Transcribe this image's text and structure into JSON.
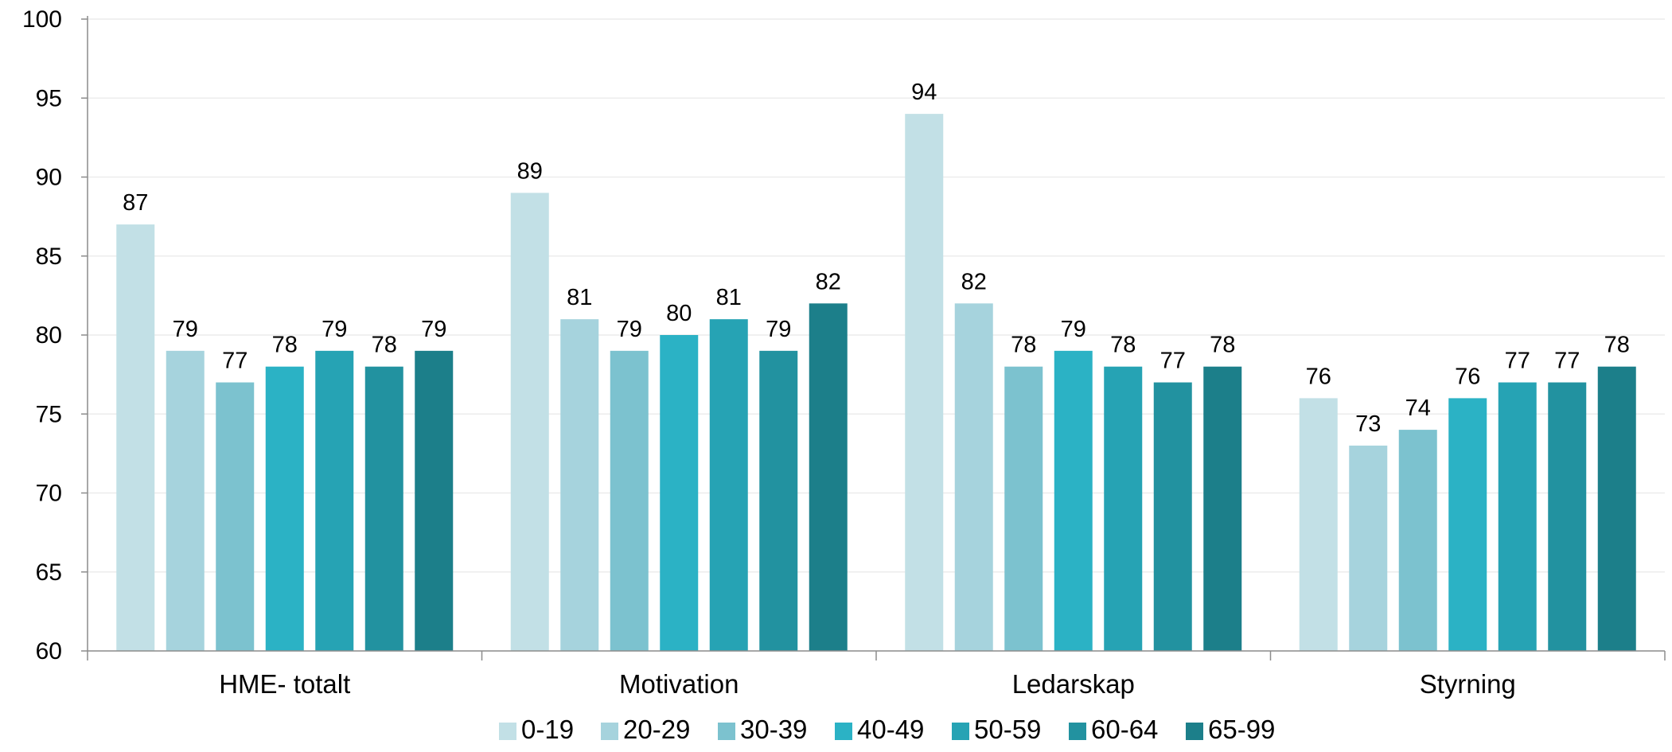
{
  "chart_data": {
    "type": "bar",
    "categories": [
      "HME- totalt",
      "Motivation",
      "Ledarskap",
      "Styrning"
    ],
    "series": [
      {
        "name": "0-19",
        "color": "#c2e0e6",
        "values": [
          87,
          89,
          94,
          76
        ]
      },
      {
        "name": "20-29",
        "color": "#a6d3dd",
        "values": [
          79,
          81,
          82,
          73
        ]
      },
      {
        "name": "30-39",
        "color": "#7cc2cf",
        "values": [
          77,
          79,
          78,
          74
        ]
      },
      {
        "name": "40-49",
        "color": "#2bb2c5",
        "values": [
          78,
          80,
          79,
          76
        ]
      },
      {
        "name": "50-59",
        "color": "#26a3b4",
        "values": [
          79,
          81,
          78,
          77
        ]
      },
      {
        "name": "60-64",
        "color": "#2292a0",
        "values": [
          78,
          79,
          77,
          77
        ]
      },
      {
        "name": "65-99",
        "color": "#1c7f8a",
        "values": [
          79,
          82,
          78,
          78
        ]
      }
    ],
    "title": "",
    "xlabel": "",
    "ylabel": "",
    "ylim": [
      60,
      100
    ],
    "yticks": [
      "60",
      "65",
      "70",
      "75",
      "80",
      "85",
      "90",
      "95",
      "100"
    ],
    "grid": "horizontal",
    "grid_color": "#ececec",
    "axis_color": "#8c8c8c",
    "legend_position": "bottom"
  }
}
